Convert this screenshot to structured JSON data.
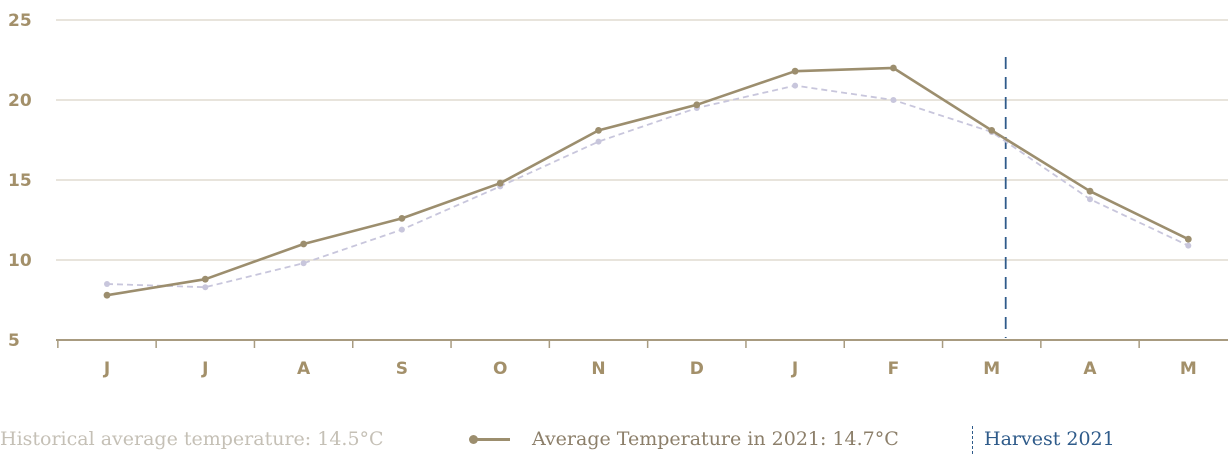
{
  "chart_data": {
    "type": "line",
    "categories": [
      "J",
      "J",
      "A",
      "S",
      "O",
      "N",
      "D",
      "J",
      "F",
      "M",
      "A",
      "M"
    ],
    "series": [
      {
        "name": "Average Temperature in 2021: 14.7°C",
        "values": [
          7.8,
          8.8,
          11.0,
          12.6,
          14.8,
          18.1,
          19.7,
          21.8,
          22.0,
          18.1,
          14.3,
          11.3
        ],
        "style": "solid",
        "color": "#9c8e6e"
      },
      {
        "name": "Historical average temperature: 14.5°C",
        "values": [
          8.5,
          8.3,
          9.8,
          11.9,
          14.6,
          17.4,
          19.5,
          20.9,
          20.0,
          18.0,
          13.8,
          10.9
        ],
        "style": "dashed",
        "color": "#c8c6dc"
      }
    ],
    "yticks": [
      5,
      10,
      15,
      20,
      25
    ],
    "ylim": [
      5,
      25
    ],
    "grid": true,
    "annotations": [
      {
        "type": "vertical-dashed-line",
        "at_category_index": 9,
        "label": "Harvest 2021",
        "color": "#2f5b8a"
      }
    ],
    "legend_position": "bottom"
  },
  "legend": {
    "historical": "Historical average temperature: 14.5°C",
    "average": "Average Temperature in 2021: 14.7°C",
    "harvest": "Harvest 2021"
  }
}
